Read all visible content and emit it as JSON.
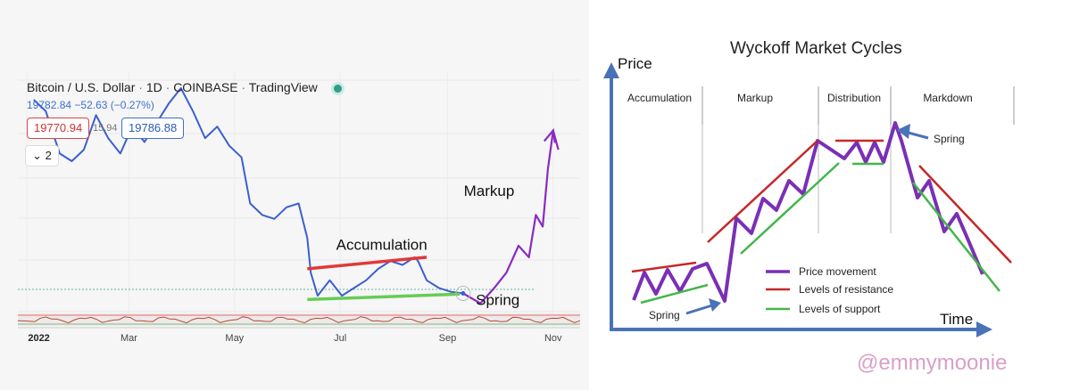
{
  "left_header": {
    "title": "Bitcoin / U.S. Dollar",
    "interval": "1D",
    "exchange": "COINBASE",
    "source": "TradingView",
    "price": "19782.84",
    "change": "−52.63",
    "change_pct": "(−0.27%)",
    "bid": "19770.94",
    "spread": "15.94",
    "ask": "19786.88",
    "interval_button": "2",
    "interval_icon": "chevron-down-icon"
  },
  "right_title": "Wyckoff Market Cycles",
  "watermark": "@emmymoonie",
  "colors": {
    "price_line": "#3a5fd0",
    "projection": "#8a2bbf",
    "resistance": "#e03a3a",
    "support": "#66cc55",
    "axis": "#4a72b8",
    "watermark": "#d9a0c6"
  },
  "chart_data": [
    {
      "type": "line",
      "title": "Bitcoin / U.S. Dollar · 1D · COINBASE · TradingView",
      "x_ticks": [
        "2022",
        "Mar",
        "May",
        "Jul",
        "Sep",
        "Nov"
      ],
      "series": [
        {
          "role": "price",
          "x": [
            "2022-01-05",
            "2022-01-12",
            "2022-01-20",
            "2022-01-27",
            "2022-02-03",
            "2022-02-10",
            "2022-02-17",
            "2022-02-24",
            "2022-03-03",
            "2022-03-10",
            "2022-03-17",
            "2022-03-24",
            "2022-03-31",
            "2022-04-07",
            "2022-04-14",
            "2022-04-21",
            "2022-04-28",
            "2022-05-05",
            "2022-05-10",
            "2022-05-17",
            "2022-05-24",
            "2022-05-31",
            "2022-06-07",
            "2022-06-12",
            "2022-06-14",
            "2022-06-18",
            "2022-06-25",
            "2022-07-02",
            "2022-07-09",
            "2022-07-16",
            "2022-07-23",
            "2022-07-30",
            "2022-08-06",
            "2022-08-13",
            "2022-08-15",
            "2022-08-20",
            "2022-08-27",
            "2022-09-03",
            "2022-09-10"
          ],
          "y": [
            45000,
            43500,
            38000,
            37000,
            38500,
            43000,
            40000,
            38000,
            41500,
            39500,
            42000,
            44500,
            46500,
            43500,
            40000,
            41500,
            39000,
            37500,
            31500,
            30000,
            29500,
            31000,
            31500,
            27000,
            22500,
            19500,
            21500,
            19500,
            20500,
            21500,
            23000,
            24000,
            23500,
            24500,
            24000,
            21500,
            20500,
            20000,
            19800
          ]
        },
        {
          "name": "Markup",
          "role": "projection",
          "x": [
            "2022-09-10",
            "2022-09-20",
            "2022-09-28",
            "2022-10-05",
            "2022-10-12",
            "2022-10-18",
            "2022-10-22",
            "2022-10-26",
            "2022-10-29",
            "2022-11-01",
            "2022-11-04"
          ],
          "y": [
            19800,
            18500,
            20500,
            22500,
            26000,
            24500,
            30000,
            28500,
            36000,
            41000,
            38500
          ]
        },
        {
          "name": "Levels of resistance",
          "role": "resistance",
          "x": [
            "2022-06-12",
            "2022-08-20"
          ],
          "y": [
            23000,
            24500
          ]
        },
        {
          "name": "Levels of support",
          "role": "support",
          "x": [
            "2022-06-12",
            "2022-09-08"
          ],
          "y": [
            19000,
            19700
          ]
        }
      ],
      "annotations": [
        {
          "text": "Accumulation",
          "x": "2022-07-25",
          "y": 25500
        },
        {
          "text": "Markup",
          "x": "2022-09-25",
          "y": 32500
        },
        {
          "text": "Spring",
          "x": "2022-09-30",
          "y": 18300
        }
      ]
    },
    {
      "type": "diagram",
      "title": "Wyckoff Market Cycles",
      "xlabel": "Time",
      "ylabel": "Price",
      "phases": [
        "Accumulation",
        "Markup",
        "Distribution",
        "Markdown"
      ],
      "legend": [
        {
          "label": "Price movement",
          "color": "#7a2fb5"
        },
        {
          "label": "Levels of resistance",
          "color": "#c62828"
        },
        {
          "label": "Levels of support",
          "color": "#43b649"
        }
      ],
      "annotations": [
        "Spring",
        "Spring"
      ]
    }
  ]
}
